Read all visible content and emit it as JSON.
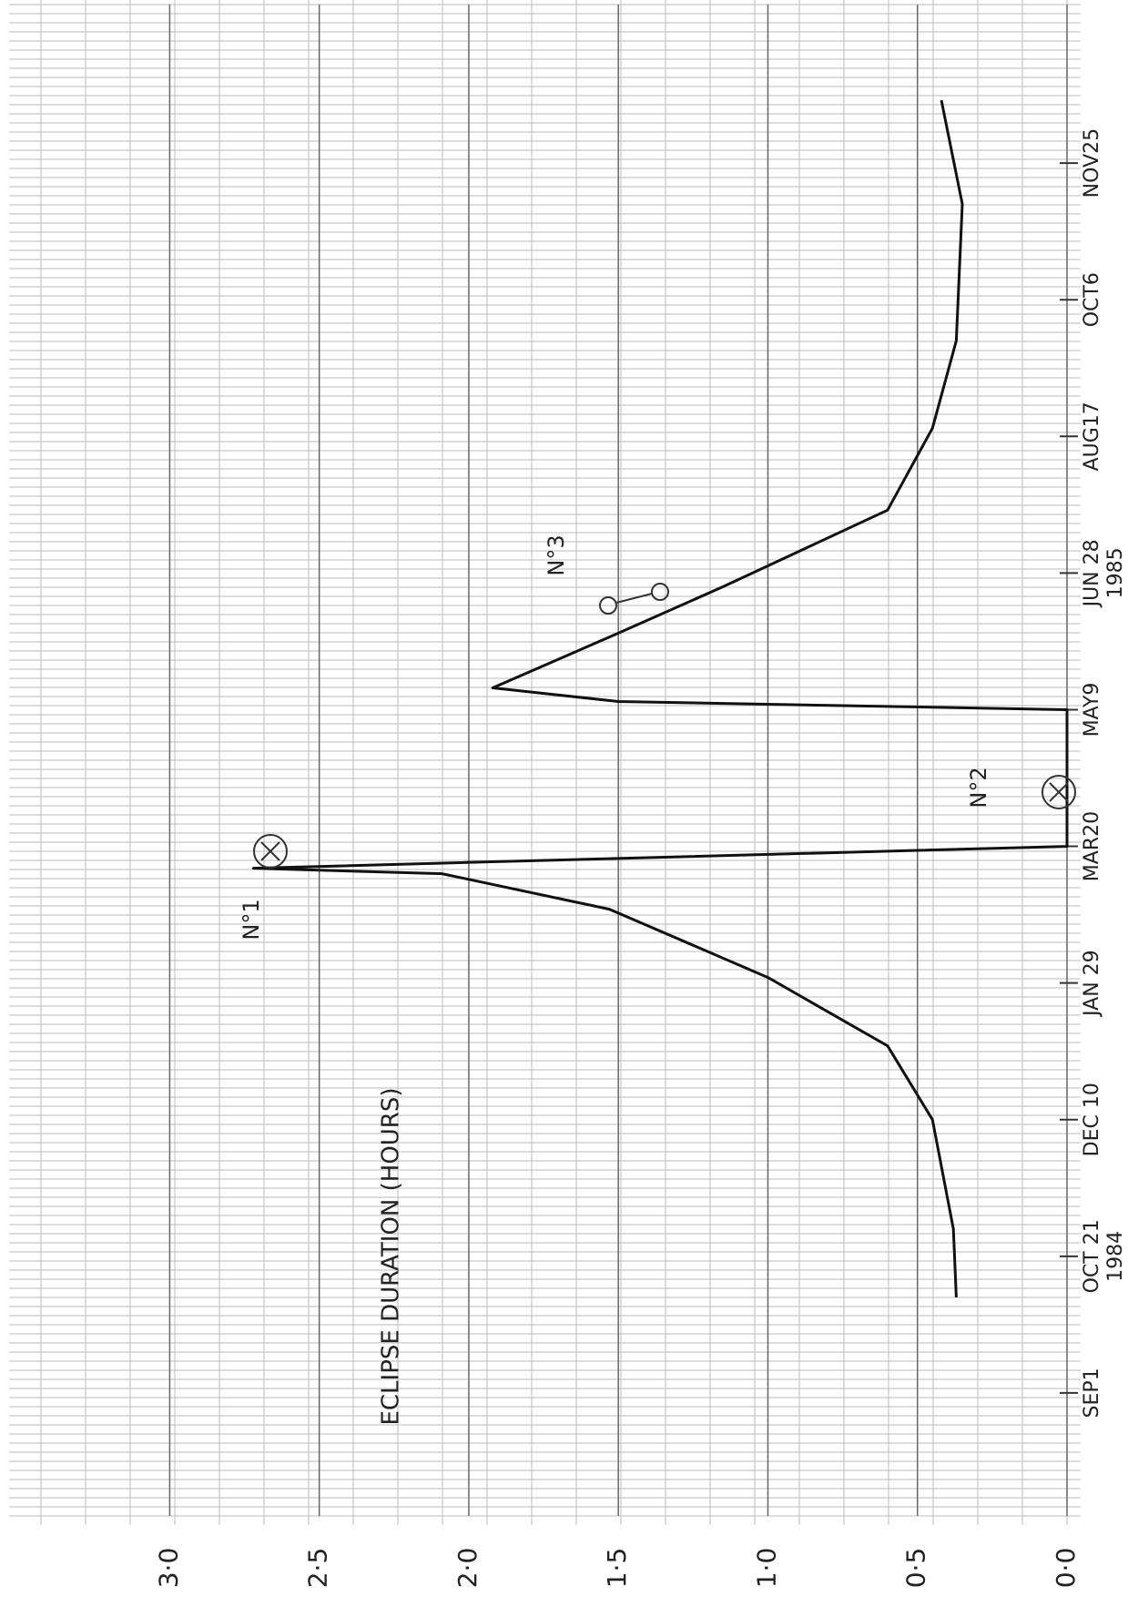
{
  "chart_data": {
    "type": "line",
    "y_label": "ECLIPSE DURATION (HOURS)",
    "x": [
      "1984-10-06",
      "1984-10-31",
      "1984-12-10",
      "1985-01-06",
      "1985-01-31",
      "1985-02-25",
      "1985-03-10",
      "1985-03-12",
      "1985-03-20",
      "1985-05-09",
      "1985-05-12",
      "1985-05-17",
      "1985-06-06",
      "1985-06-23",
      "1985-07-21",
      "1985-08-20",
      "1985-09-21",
      "1985-11-10",
      "1985-12-18"
    ],
    "values": [
      0.37,
      0.38,
      0.45,
      0.6,
      1.0,
      1.53,
      2.09,
      2.72,
      0,
      0,
      1.5,
      1.92,
      1.5,
      1.15,
      0.6,
      0.45,
      0.37,
      0.35,
      0.42
    ],
    "color": "#111111",
    "xlim": [
      "1984-07-18",
      "1986-01-22"
    ],
    "xticks": [
      {
        "value": "1984-09-01",
        "label": "SEP1"
      },
      {
        "value": "1984-10-21",
        "label": "OCT 21"
      },
      {
        "value": "1984-12-10",
        "label": "DEC 10"
      },
      {
        "value": "1985-01-29",
        "label": "JAN 29"
      },
      {
        "value": "1985-03-20",
        "label": "MAR20"
      },
      {
        "value": "1985-05-09",
        "label": "MAY9"
      },
      {
        "value": "1985-06-28",
        "label": "JUN 28"
      },
      {
        "value": "1985-08-17",
        "label": "AUG17"
      },
      {
        "value": "1985-10-06",
        "label": "OCT6"
      },
      {
        "value": "1985-11-25",
        "label": "NOV25"
      }
    ],
    "year_labels": [
      {
        "value": "1984-10-21",
        "label": "1984"
      },
      {
        "value": "1985-06-28",
        "label": "1985"
      }
    ],
    "ylim": [
      0,
      3.4
    ],
    "yticks": [
      {
        "value": 0,
        "label": "0·0"
      },
      {
        "value": 0.5,
        "label": "0·5"
      },
      {
        "value": 1,
        "label": "1·0"
      },
      {
        "value": 1.5,
        "label": "1·5"
      },
      {
        "value": 2,
        "label": "2·0"
      },
      {
        "value": 2.5,
        "label": "2·5"
      },
      {
        "value": 3,
        "label": "3·0"
      }
    ],
    "annotations": [
      "N°1",
      "N°2",
      "N°3"
    ],
    "grid": true
  }
}
